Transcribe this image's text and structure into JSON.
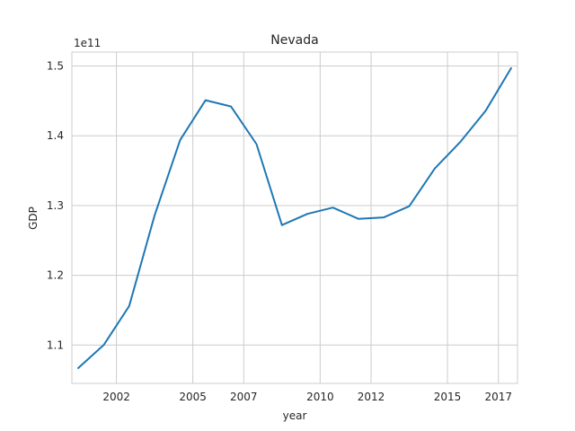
{
  "chart_data": {
    "type": "line",
    "title": "Nevada",
    "xlabel": "year",
    "ylabel": "GDP",
    "y_offset_text": "1e11",
    "grid": true,
    "x": [
      2000.5,
      2001.5,
      2002.5,
      2003.5,
      2004.5,
      2005.5,
      2006.5,
      2007.5,
      2008.5,
      2009.5,
      2010.5,
      2011.5,
      2012.5,
      2013.5,
      2014.5,
      2015.5,
      2016.5,
      2017.5
    ],
    "xlim": [
      2000.25,
      2017.75
    ],
    "x_ticks": [
      2002,
      2005,
      2007,
      2010,
      2012,
      2015,
      2017
    ],
    "x_tick_labels": [
      "2002",
      "2005",
      "2007",
      "2010",
      "2012",
      "2015",
      "2017"
    ],
    "series": [
      {
        "color": "#1f77b4",
        "values": [
          1.067,
          1.1,
          1.156,
          1.286,
          1.394,
          1.451,
          1.442,
          1.388,
          1.272,
          1.288,
          1.297,
          1.281,
          1.283,
          1.299,
          1.353,
          1.391,
          1.436,
          1.497
        ]
      }
    ],
    "ylim": [
      1.045,
      1.52
    ],
    "y_ticks": [
      1.1,
      1.2,
      1.3,
      1.4,
      1.5
    ],
    "y_tick_labels": [
      "1.1",
      "1.2",
      "1.3",
      "1.4",
      "1.5"
    ]
  }
}
